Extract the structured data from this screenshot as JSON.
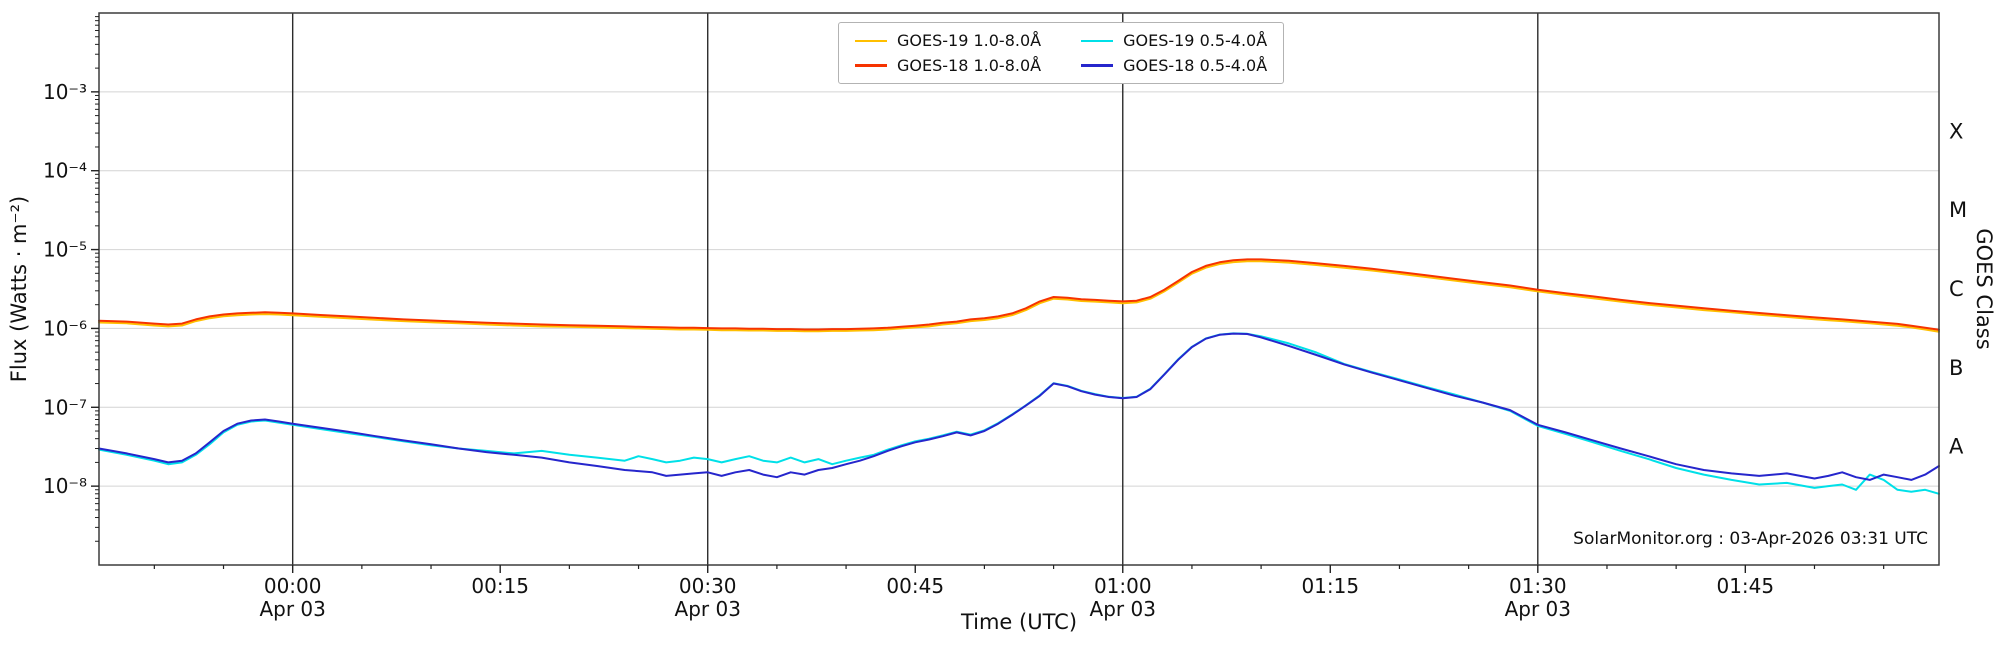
{
  "chart_data": {
    "type": "line",
    "title": "",
    "xlabel": "Time (UTC)",
    "ylabel": "Flux (Watts · m⁻²)",
    "ylabel_right": "GOES Class",
    "annotation": "SolarMonitor.org : 03-Apr-2026 03:31 UTC",
    "background": "#ffffff",
    "grid_color": "#d4d4d4",
    "vline_color": "#2b2b2b",
    "frame_color": "#3c3c3c",
    "x_unit": "minutes relative to 00:00 UTC Apr 03",
    "xlim": [
      -14,
      119
    ],
    "ylim_log10": [
      -9,
      -2
    ],
    "x_ticks": [
      {
        "m": 0,
        "label": "00:00",
        "sub": "Apr 03",
        "vline": true
      },
      {
        "m": 15,
        "label": "00:15",
        "sub": "",
        "vline": false
      },
      {
        "m": 30,
        "label": "00:30",
        "sub": "Apr 03",
        "vline": true
      },
      {
        "m": 45,
        "label": "00:45",
        "sub": "",
        "vline": false
      },
      {
        "m": 60,
        "label": "01:00",
        "sub": "Apr 03",
        "vline": true
      },
      {
        "m": 75,
        "label": "01:15",
        "sub": "",
        "vline": false
      },
      {
        "m": 90,
        "label": "01:30",
        "sub": "Apr 03",
        "vline": true
      },
      {
        "m": 105,
        "label": "01:45",
        "sub": "",
        "vline": false
      }
    ],
    "y_ticks": [
      {
        "exp": -3,
        "label": "10⁻³"
      },
      {
        "exp": -4,
        "label": "10⁻⁴"
      },
      {
        "exp": -5,
        "label": "10⁻⁵"
      },
      {
        "exp": -6,
        "label": "10⁻⁶"
      },
      {
        "exp": -7,
        "label": "10⁻⁷"
      },
      {
        "exp": -8,
        "label": "10⁻⁸"
      }
    ],
    "goes_classes": [
      {
        "label": "X",
        "log10": -3.5
      },
      {
        "label": "M",
        "log10": -4.5
      },
      {
        "label": "C",
        "log10": -5.5
      },
      {
        "label": "B",
        "log10": -6.5
      },
      {
        "label": "A",
        "log10": -7.5
      }
    ],
    "x_minutes": [
      -14,
      -12,
      -10,
      -9,
      -8,
      -7,
      -6,
      -5,
      -4,
      -3,
      -2,
      -1,
      0,
      2,
      4,
      6,
      8,
      10,
      12,
      14,
      16,
      18,
      20,
      22,
      24,
      25,
      26,
      27,
      28,
      29,
      30,
      31,
      32,
      33,
      34,
      35,
      36,
      37,
      38,
      39,
      40,
      41,
      42,
      43,
      44,
      45,
      46,
      47,
      48,
      49,
      50,
      51,
      52,
      53,
      54,
      55,
      56,
      57,
      58,
      59,
      60,
      61,
      62,
      63,
      64,
      65,
      66,
      67,
      68,
      69,
      70,
      72,
      74,
      76,
      78,
      80,
      82,
      84,
      86,
      88,
      90,
      92,
      94,
      96,
      98,
      100,
      102,
      104,
      106,
      108,
      110,
      111,
      112,
      113,
      114,
      115,
      116,
      117,
      118,
      119
    ],
    "series": [
      {
        "name": "GOES-19 1.0-8.0Å",
        "color": "#ffbf00",
        "y": [
          1.19e-06,
          1.16e-06,
          1.09e-06,
          1.06e-06,
          1.09e-06,
          1.24e-06,
          1.35e-06,
          1.43e-06,
          1.47e-06,
          1.5e-06,
          1.52e-06,
          1.5e-06,
          1.47e-06,
          1.41e-06,
          1.35e-06,
          1.29e-06,
          1.24e-06,
          1.2e-06,
          1.16e-06,
          1.12e-06,
          1.09e-06,
          1.06e-06,
          1.05e-06,
          1.03e-06,
          1.01e-06,
          1e-06,
          9.9e-07,
          9.8e-07,
          9.7e-07,
          9.7e-07,
          9.6e-07,
          9.5e-07,
          9.5e-07,
          9.4e-07,
          9.4e-07,
          9.3e-07,
          9.3e-07,
          9.2e-07,
          9.2e-07,
          9.3e-07,
          9.3e-07,
          9.4e-07,
          9.5e-07,
          9.7e-07,
          1e-06,
          1.03e-06,
          1.06e-06,
          1.12e-06,
          1.16e-06,
          1.24e-06,
          1.28e-06,
          1.35e-06,
          1.47e-06,
          1.71e-06,
          2.09e-06,
          2.38e-06,
          2.33e-06,
          2.23e-06,
          2.19e-06,
          2.14e-06,
          2.09e-06,
          2.14e-06,
          2.38e-06,
          2.95e-06,
          3.8e-06,
          4.94e-06,
          5.89e-06,
          6.56e-06,
          6.94e-06,
          7.13e-06,
          7.13e-06,
          6.84e-06,
          6.37e-06,
          5.89e-06,
          5.42e-06,
          4.94e-06,
          4.47e-06,
          4.04e-06,
          3.66e-06,
          3.33e-06,
          2.95e-06,
          2.66e-06,
          2.42e-06,
          2.19e-06,
          2e-06,
          1.85e-06,
          1.71e-06,
          1.6e-06,
          1.49e-06,
          1.4e-06,
          1.31e-06,
          1.27e-06,
          1.24e-06,
          1.2e-06,
          1.16e-06,
          1.12e-06,
          1.08e-06,
          1.03e-06,
          9.7e-07,
          9.1e-07
        ]
      },
      {
        "name": "GOES-18 1.0-8.0Å",
        "color": "#f63300",
        "y": [
          1.25e-06,
          1.22e-06,
          1.15e-06,
          1.12e-06,
          1.15e-06,
          1.3e-06,
          1.42e-06,
          1.5e-06,
          1.55e-06,
          1.58e-06,
          1.6e-06,
          1.58e-06,
          1.55e-06,
          1.48e-06,
          1.42e-06,
          1.36e-06,
          1.3e-06,
          1.26e-06,
          1.22e-06,
          1.18e-06,
          1.15e-06,
          1.12e-06,
          1.1e-06,
          1.08e-06,
          1.06e-06,
          1.05e-06,
          1.04e-06,
          1.03e-06,
          1.02e-06,
          1.02e-06,
          1.01e-06,
          1e-06,
          1e-06,
          9.9e-07,
          9.9e-07,
          9.8e-07,
          9.8e-07,
          9.7e-07,
          9.7e-07,
          9.8e-07,
          9.8e-07,
          9.9e-07,
          1e-06,
          1.02e-06,
          1.05e-06,
          1.08e-06,
          1.12e-06,
          1.18e-06,
          1.22e-06,
          1.3e-06,
          1.35e-06,
          1.42e-06,
          1.55e-06,
          1.8e-06,
          2.2e-06,
          2.5e-06,
          2.45e-06,
          2.35e-06,
          2.3e-06,
          2.25e-06,
          2.2e-06,
          2.25e-06,
          2.5e-06,
          3.1e-06,
          4e-06,
          5.2e-06,
          6.2e-06,
          6.9e-06,
          7.3e-06,
          7.5e-06,
          7.5e-06,
          7.2e-06,
          6.7e-06,
          6.2e-06,
          5.7e-06,
          5.2e-06,
          4.7e-06,
          4.25e-06,
          3.85e-06,
          3.5e-06,
          3.1e-06,
          2.8e-06,
          2.55e-06,
          2.3e-06,
          2.1e-06,
          1.95e-06,
          1.8e-06,
          1.68e-06,
          1.57e-06,
          1.47e-06,
          1.38e-06,
          1.34e-06,
          1.3e-06,
          1.26e-06,
          1.22e-06,
          1.18e-06,
          1.14e-06,
          1.08e-06,
          1.02e-06,
          9.6e-07
        ]
      },
      {
        "name": "GOES-19 0.5-4.0Å",
        "color": "#00e0e8",
        "y": [
          2.9e-08,
          2.5e-08,
          2.1e-08,
          1.9e-08,
          2e-08,
          2.5e-08,
          3.4e-08,
          4.8e-08,
          6e-08,
          6.6e-08,
          6.8e-08,
          6.4e-08,
          6e-08,
          5.3e-08,
          4.7e-08,
          4.2e-08,
          3.7e-08,
          3.3e-08,
          3e-08,
          2.8e-08,
          2.6e-08,
          2.8e-08,
          2.5e-08,
          2.3e-08,
          2.1e-08,
          2.4e-08,
          2.2e-08,
          2e-08,
          2.1e-08,
          2.3e-08,
          2.2e-08,
          2e-08,
          2.2e-08,
          2.4e-08,
          2.1e-08,
          2e-08,
          2.3e-08,
          2e-08,
          2.2e-08,
          1.9e-08,
          2.1e-08,
          2.3e-08,
          2.5e-08,
          2.9e-08,
          3.3e-08,
          3.7e-08,
          4e-08,
          4.4e-08,
          4.9e-08,
          4.5e-08,
          5.1e-08,
          6.3e-08,
          8.1e-08,
          1.06e-07,
          1.42e-07,
          2.02e-07,
          1.87e-07,
          1.62e-07,
          1.47e-07,
          1.36e-07,
          1.31e-07,
          1.36e-07,
          1.72e-07,
          2.62e-07,
          4.05e-07,
          5.85e-07,
          7.45e-07,
          8.35e-07,
          8.65e-07,
          8.55e-07,
          7.95e-07,
          6.45e-07,
          4.95e-07,
          3.55e-07,
          2.8e-07,
          2.25e-07,
          1.8e-07,
          1.45e-07,
          1.15e-07,
          9e-08,
          5.8e-08,
          4.6e-08,
          3.6e-08,
          2.8e-08,
          2.2e-08,
          1.7e-08,
          1.4e-08,
          1.2e-08,
          1.05e-08,
          1.1e-08,
          9.5e-09,
          1e-08,
          1.05e-08,
          9e-09,
          1.4e-08,
          1.2e-08,
          9e-09,
          8.5e-09,
          9e-09,
          8e-09
        ]
      },
      {
        "name": "GOES-18 0.5-4.0Å",
        "color": "#2626cc",
        "y": [
          3e-08,
          2.6e-08,
          2.2e-08,
          2e-08,
          2.1e-08,
          2.6e-08,
          3.6e-08,
          5e-08,
          6.2e-08,
          6.8e-08,
          7e-08,
          6.6e-08,
          6.2e-08,
          5.5e-08,
          4.9e-08,
          4.3e-08,
          3.8e-08,
          3.4e-08,
          3e-08,
          2.7e-08,
          2.5e-08,
          2.3e-08,
          2e-08,
          1.8e-08,
          1.6e-08,
          1.55e-08,
          1.5e-08,
          1.35e-08,
          1.4e-08,
          1.45e-08,
          1.5e-08,
          1.35e-08,
          1.5e-08,
          1.6e-08,
          1.4e-08,
          1.3e-08,
          1.5e-08,
          1.4e-08,
          1.6e-08,
          1.7e-08,
          1.9e-08,
          2.1e-08,
          2.4e-08,
          2.8e-08,
          3.2e-08,
          3.6e-08,
          3.9e-08,
          4.3e-08,
          4.8e-08,
          4.4e-08,
          5e-08,
          6.2e-08,
          8e-08,
          1.05e-07,
          1.4e-07,
          2e-07,
          1.85e-07,
          1.6e-07,
          1.45e-07,
          1.35e-07,
          1.3e-07,
          1.35e-07,
          1.7e-07,
          2.6e-07,
          4e-07,
          5.8e-07,
          7.4e-07,
          8.3e-07,
          8.6e-07,
          8.5e-07,
          7.7e-07,
          6e-07,
          4.6e-07,
          3.5e-07,
          2.75e-07,
          2.2e-07,
          1.75e-07,
          1.4e-07,
          1.15e-07,
          9.2e-08,
          6e-08,
          4.8e-08,
          3.8e-08,
          3e-08,
          2.4e-08,
          1.9e-08,
          1.6e-08,
          1.45e-08,
          1.35e-08,
          1.45e-08,
          1.25e-08,
          1.35e-08,
          1.5e-08,
          1.3e-08,
          1.2e-08,
          1.4e-08,
          1.3e-08,
          1.2e-08,
          1.4e-08,
          1.8e-08
        ]
      }
    ]
  }
}
